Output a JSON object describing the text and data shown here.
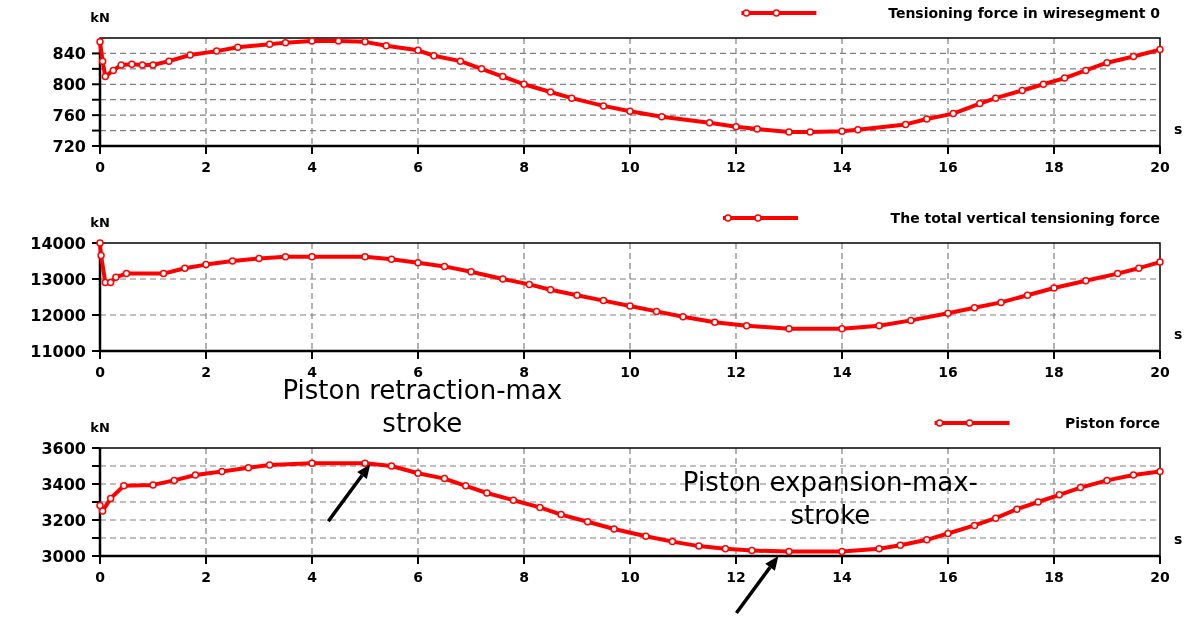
{
  "chart_data": [
    {
      "type": "line",
      "xlabel": "s",
      "ylabel": "kN",
      "xlim": [
        0,
        20
      ],
      "xticks": [
        0,
        2,
        4,
        6,
        8,
        10,
        12,
        14,
        16,
        18,
        20
      ],
      "ylim": [
        720,
        860
      ],
      "yticks": [
        720,
        {
          "value": 740,
          "label": null
        },
        760,
        {
          "value": 780,
          "label": null
        },
        800,
        {
          "value": 820,
          "label": null
        },
        840
      ],
      "grid": true,
      "legend": "top right",
      "marker": "circle",
      "line_style": "solid",
      "x": [
        0,
        0.05,
        0.1,
        0.25,
        0.4,
        0.6,
        0.8,
        1.0,
        1.3,
        1.7,
        2.2,
        2.6,
        3.2,
        3.5,
        4,
        4.5,
        5,
        5.4,
        6,
        6.3,
        6.8,
        7.2,
        7.6,
        8,
        8.5,
        8.9,
        9.5,
        10,
        10.6,
        11.5,
        12,
        12.4,
        13,
        13.4,
        14,
        14.3,
        15.2,
        15.6,
        16.1,
        16.6,
        16.9,
        17.4,
        17.8,
        18.2,
        18.6,
        19,
        19.5,
        20
      ],
      "series": [
        {
          "name": "Tensioning force in wiresegment 0",
          "color": "#ff0000",
          "values": [
            855,
            830,
            810,
            818,
            825,
            826,
            825,
            825,
            830,
            838,
            843,
            848,
            852,
            854,
            856,
            856,
            855,
            850,
            844,
            837,
            830,
            820,
            810,
            800,
            790,
            782,
            772,
            765,
            758,
            750,
            745,
            742,
            738,
            738,
            739,
            741,
            748,
            755,
            762,
            775,
            782,
            792,
            800,
            808,
            818,
            828,
            836,
            845
          ]
        }
      ]
    },
    {
      "type": "line",
      "xlabel": "s",
      "ylabel": "kN",
      "xlim": [
        0,
        20
      ],
      "xticks": [
        0,
        2,
        4,
        6,
        8,
        10,
        12,
        14,
        16,
        18,
        20
      ],
      "ylim": [
        11000,
        14000
      ],
      "yticks": [
        11000,
        12000,
        13000,
        14000
      ],
      "grid": true,
      "legend": "top right",
      "marker": "circle",
      "line_style": "solid",
      "x": [
        0,
        0.02,
        0.1,
        0.2,
        0.3,
        0.5,
        1.2,
        1.6,
        2,
        2.5,
        3,
        3.5,
        4,
        5,
        5.5,
        6,
        6.5,
        7,
        7.6,
        8.1,
        8.5,
        9,
        9.5,
        10,
        10.5,
        11,
        11.6,
        12.2,
        13,
        14,
        14.7,
        15.3,
        16,
        16.5,
        17,
        17.5,
        18,
        18.6,
        19.2,
        19.6,
        20
      ],
      "series": [
        {
          "name": "The total vertical tensioning force",
          "color": "#ff0000",
          "values": [
            14000,
            13650,
            12900,
            12900,
            13050,
            13150,
            13150,
            13300,
            13400,
            13500,
            13570,
            13620,
            13620,
            13620,
            13550,
            13450,
            13350,
            13200,
            13000,
            12850,
            12700,
            12550,
            12400,
            12250,
            12100,
            11950,
            11800,
            11700,
            11620,
            11620,
            11700,
            11850,
            12050,
            12200,
            12350,
            12550,
            12750,
            12950,
            13150,
            13300,
            13470
          ]
        }
      ]
    },
    {
      "type": "line",
      "xlabel": "s",
      "ylabel": "kN",
      "xlim": [
        0,
        20
      ],
      "xticks": [
        0,
        2,
        4,
        6,
        8,
        10,
        12,
        14,
        16,
        18,
        20
      ],
      "ylim": [
        3000,
        3600
      ],
      "yticks": [
        3000,
        {
          "value": 3100,
          "label": null
        },
        3200,
        {
          "value": 3300,
          "label": null
        },
        3400,
        {
          "value": 3500,
          "label": null
        },
        3600
      ],
      "grid": true,
      "legend": "top right",
      "marker": "circle",
      "line_style": "solid",
      "x": [
        0,
        0.05,
        0.2,
        0.45,
        1.0,
        1.4,
        1.8,
        2.3,
        2.8,
        3.2,
        4,
        5,
        5.5,
        6,
        6.5,
        6.9,
        7.3,
        7.8,
        8.3,
        8.7,
        9.2,
        9.7,
        10.3,
        10.8,
        11.3,
        11.8,
        12.3,
        13,
        14,
        14.7,
        15.1,
        15.6,
        16,
        16.5,
        16.9,
        17.3,
        17.7,
        18.1,
        18.5,
        19,
        19.5,
        20
      ],
      "series": [
        {
          "name": "Piston force",
          "color": "#ff0000",
          "values": [
            3280,
            3250,
            3320,
            3390,
            3395,
            3420,
            3450,
            3470,
            3490,
            3505,
            3515,
            3515,
            3500,
            3460,
            3430,
            3390,
            3350,
            3310,
            3270,
            3230,
            3190,
            3150,
            3110,
            3080,
            3055,
            3040,
            3030,
            3025,
            3025,
            3040,
            3060,
            3090,
            3125,
            3170,
            3210,
            3260,
            3300,
            3340,
            3380,
            3420,
            3450,
            3470
          ]
        }
      ],
      "annotations": [
        {
          "text": "Piston retraction-max stroke",
          "x": 5.1,
          "y": 3510
        },
        {
          "text": "Piston expansion-max-stroke",
          "x": 12.8,
          "y": 3000
        }
      ]
    }
  ]
}
